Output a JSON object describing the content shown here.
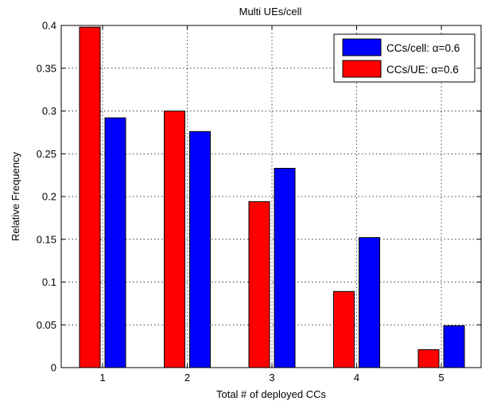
{
  "chart_data": {
    "type": "bar",
    "title": "Multi UEs/cell",
    "xlabel": "Total # of deployed CCs",
    "ylabel": "Relative Frequency",
    "categories": [
      "1",
      "2",
      "3",
      "4",
      "5"
    ],
    "ylim": [
      0,
      0.4
    ],
    "yticks": [
      "0",
      "0.05",
      "0.1",
      "0.15",
      "0.2",
      "0.25",
      "0.3",
      "0.35",
      "0.4"
    ],
    "grid": true,
    "legend_position": "top-right",
    "series": [
      {
        "name": "CCs/cell: α=0.6",
        "color": "#0000ff",
        "values": [
          0.292,
          0.276,
          0.233,
          0.152,
          0.049
        ]
      },
      {
        "name": "CCs/UE: α=0.6",
        "color": "#ff0000",
        "values": [
          0.398,
          0.3,
          0.194,
          0.089,
          0.021
        ]
      }
    ]
  }
}
